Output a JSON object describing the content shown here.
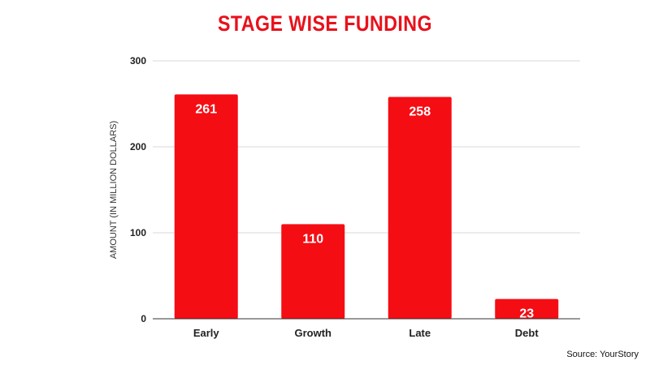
{
  "chart_data": {
    "type": "bar",
    "title": "STAGE WISE FUNDING",
    "categories": [
      "Early",
      "Growth",
      "Late",
      "Debt"
    ],
    "values": [
      261,
      110,
      258,
      23
    ],
    "data_labels": [
      "261",
      "110",
      "258",
      "23"
    ],
    "ylabel": "AMOUNT (IN MILLION DOLLARS)",
    "xlabel": "",
    "ylim": [
      0,
      300
    ],
    "yticks": [
      0,
      100,
      200,
      300
    ],
    "grid": true,
    "bar_color": "#f50d14",
    "gridline_color": "#d9d9d9",
    "title_color": "#e8111b"
  },
  "footer": {
    "source": "Source: YourStory"
  }
}
